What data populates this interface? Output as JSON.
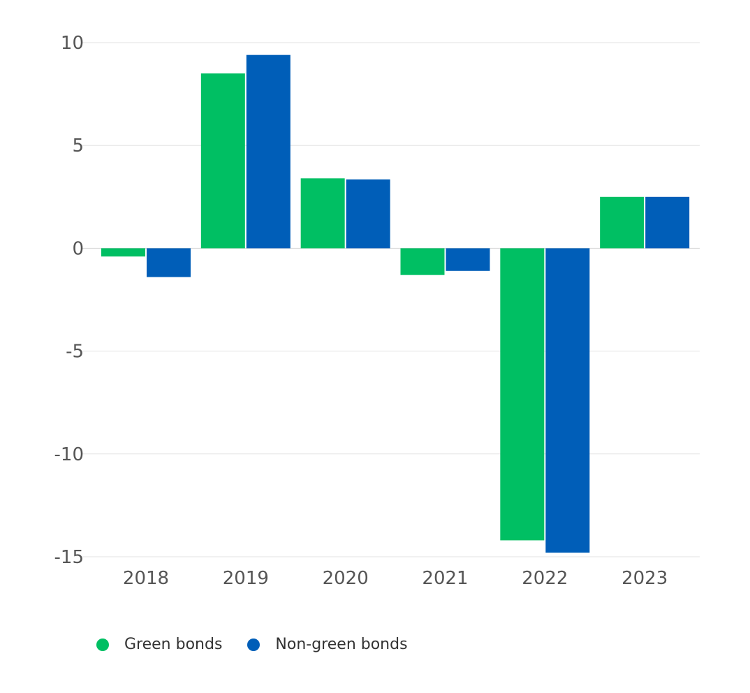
{
  "chart_data": {
    "type": "bar",
    "title": "",
    "xlabel": "",
    "ylabel": "",
    "categories": [
      "2018",
      "2019",
      "2020",
      "2021",
      "2022",
      "2023"
    ],
    "series": [
      {
        "name": "Green bonds",
        "color": "#00BF63",
        "values": [
          -0.4,
          8.5,
          3.4,
          -1.3,
          -14.2,
          2.5
        ]
      },
      {
        "name": "Non-green bonds",
        "color": "#005EB8",
        "values": [
          -1.4,
          9.4,
          3.35,
          -1.1,
          -14.8,
          2.5
        ]
      }
    ],
    "ylim": [
      -15,
      10
    ],
    "yticks": [
      "10",
      "5",
      "0",
      "-5",
      "-10",
      "-15"
    ],
    "grid": true,
    "legend_position": "bottom-left"
  }
}
